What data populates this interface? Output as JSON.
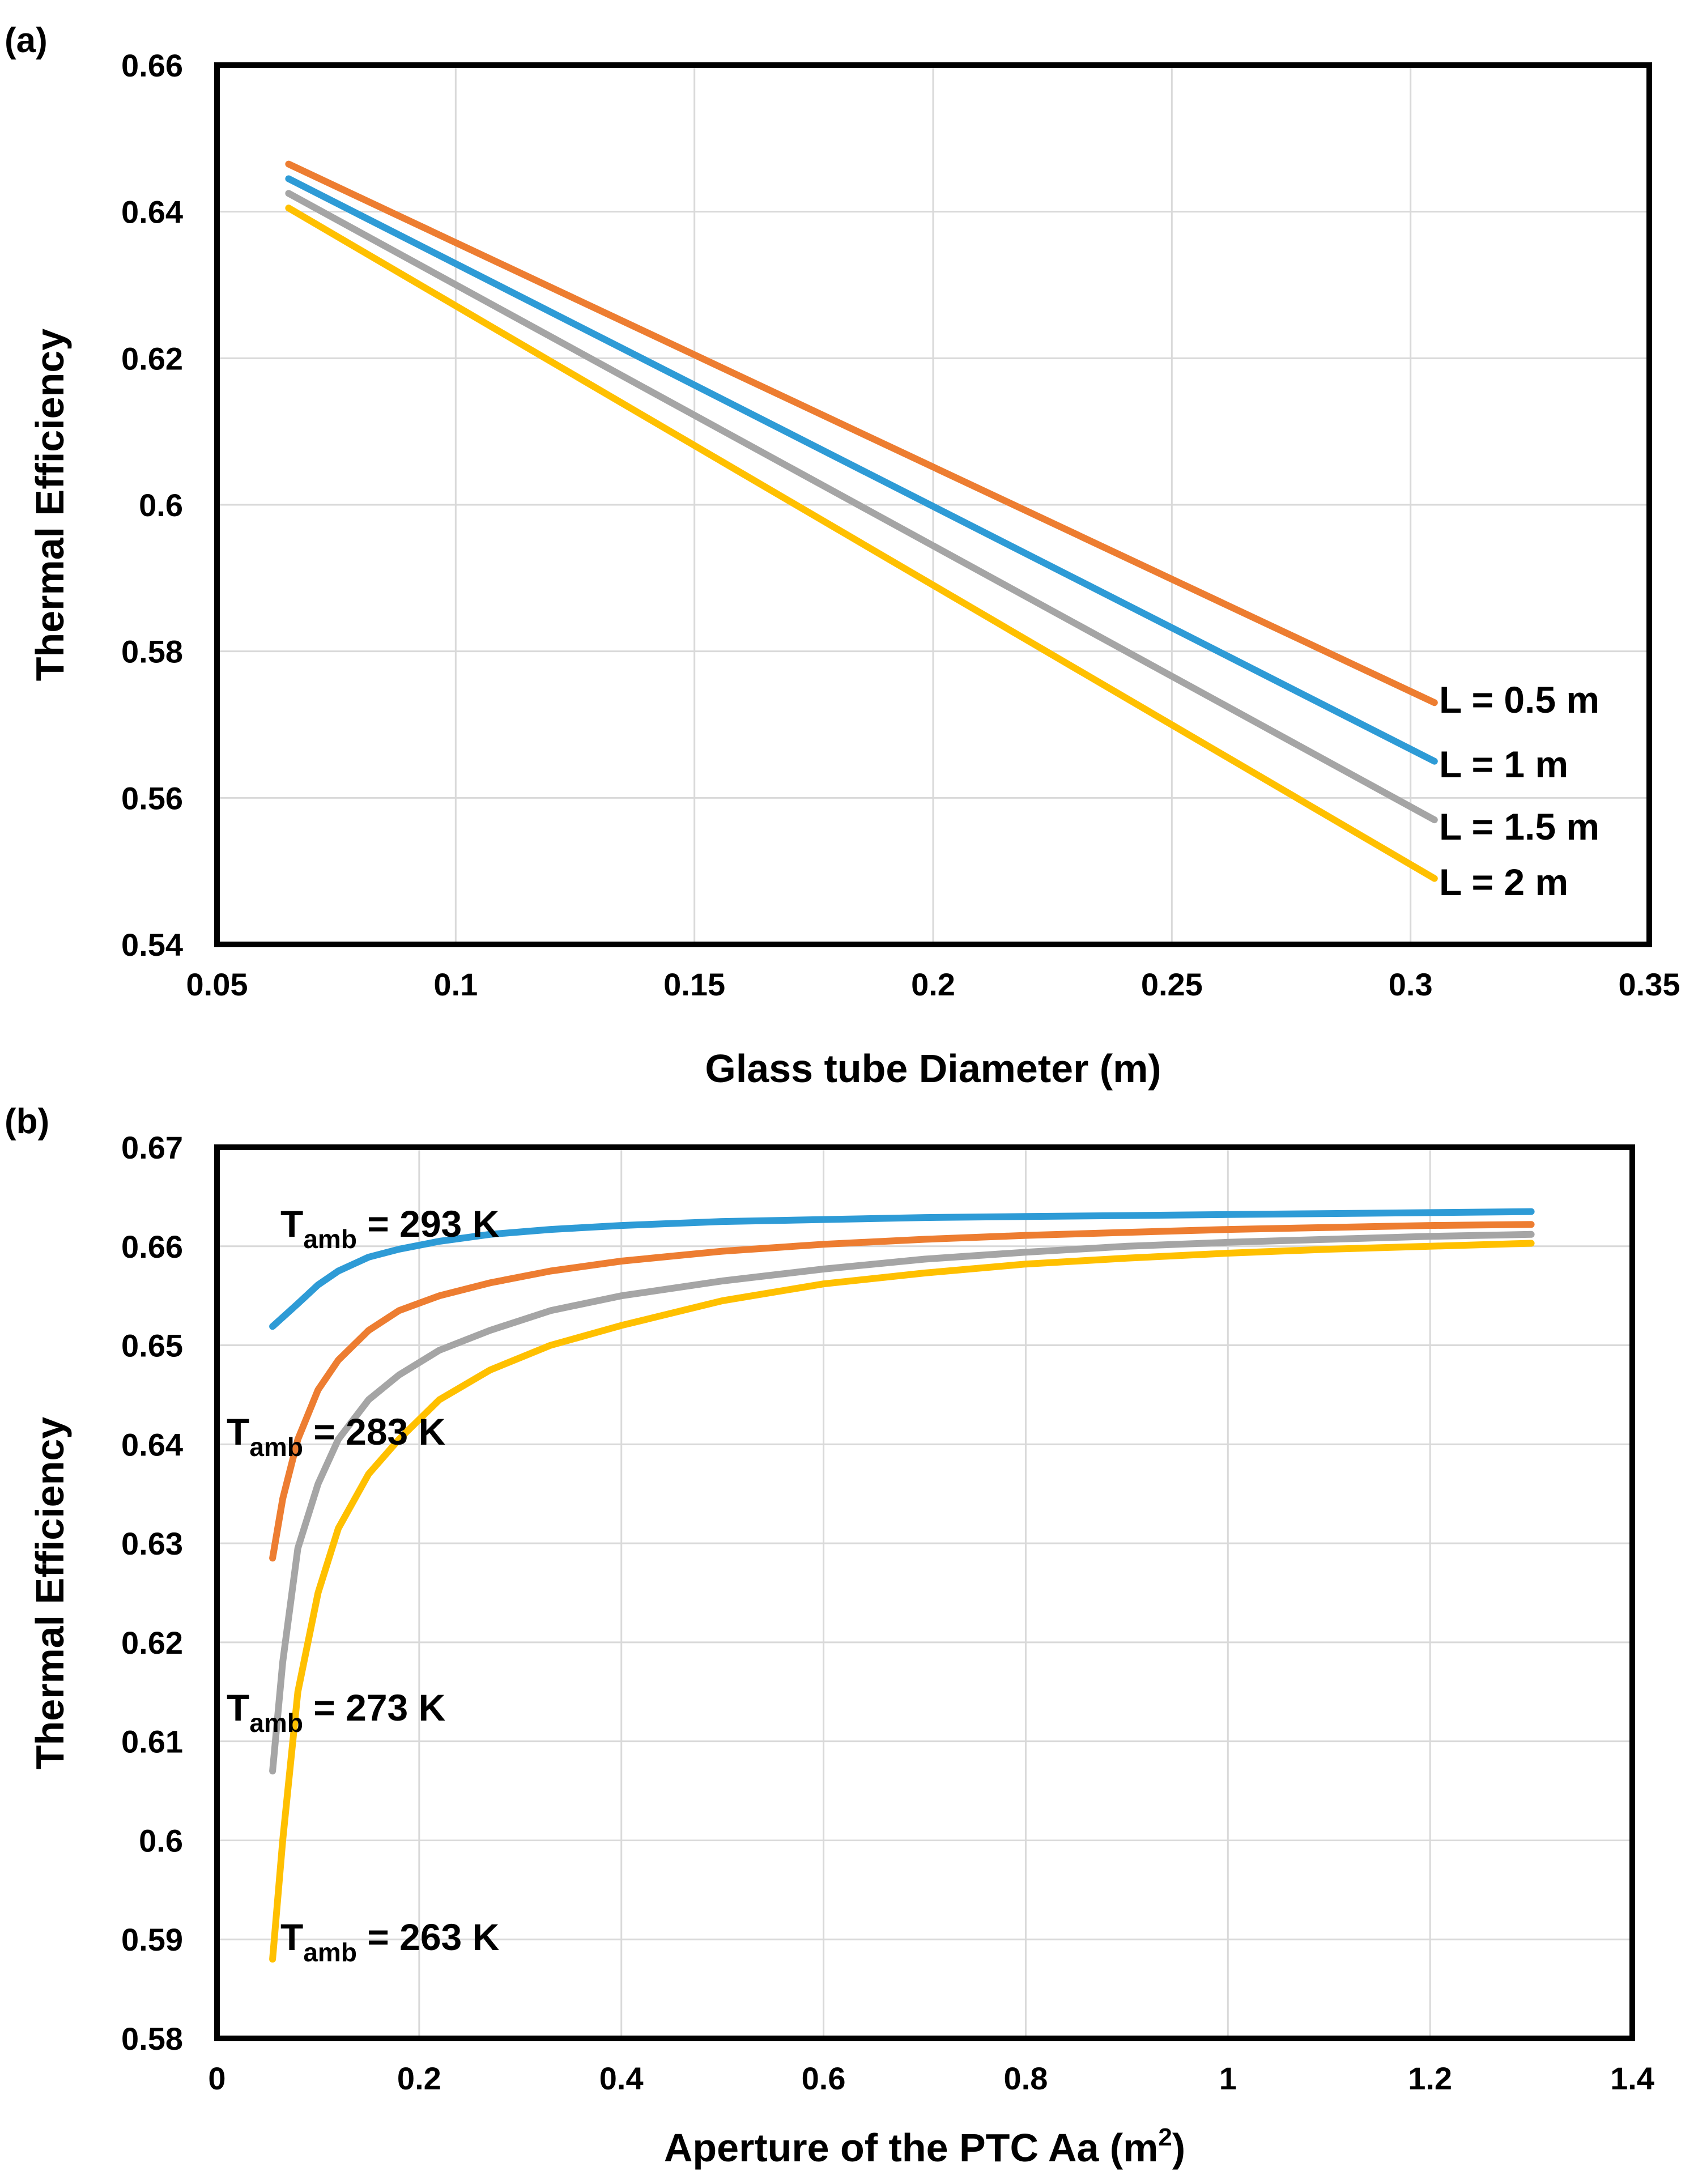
{
  "chart_data": [
    {
      "panel_label": "(a)",
      "type": "line",
      "xlabel": "Glass tube Diameter (m)",
      "ylabel": "Thermal Efficiency",
      "xlim": [
        0.05,
        0.35
      ],
      "ylim": [
        0.54,
        0.66
      ],
      "x_ticks": [
        "0.05",
        "0.1",
        "0.15",
        "0.2",
        "0.25",
        "0.3",
        "0.35"
      ],
      "y_ticks": [
        "0.54",
        "0.56",
        "0.58",
        "0.6",
        "0.62",
        "0.64",
        "0.66"
      ],
      "grid": true,
      "series": [
        {
          "name": "L = 0.5 m",
          "color": "#ED7D31",
          "x": [
            0.065,
            0.305
          ],
          "y": [
            0.6465,
            0.573
          ]
        },
        {
          "name": "L = 1 m",
          "color": "#2E9BD6",
          "x": [
            0.065,
            0.305
          ],
          "y": [
            0.6445,
            0.565
          ]
        },
        {
          "name": "L = 1.5 m",
          "color": "#A5A5A5",
          "x": [
            0.065,
            0.305
          ],
          "y": [
            0.6425,
            0.557
          ]
        },
        {
          "name": "L = 2 m",
          "color": "#FFC000",
          "x": [
            0.065,
            0.305
          ],
          "y": [
            0.6405,
            0.549
          ]
        }
      ]
    },
    {
      "panel_label": "(b)",
      "type": "line",
      "xlabel": "Aperture of the PTC Aa (m",
      "xlabel_sup": "2",
      "xlabel_end": ")",
      "ylabel": "Thermal Efficiency",
      "xlim": [
        0,
        1.4
      ],
      "ylim": [
        0.58,
        0.67
      ],
      "x_ticks": [
        "0",
        "0.2",
        "0.4",
        "0.6",
        "0.8",
        "1",
        "1.2",
        "1.4"
      ],
      "y_ticks": [
        "0.58",
        "0.59",
        "0.6",
        "0.61",
        "0.62",
        "0.63",
        "0.64",
        "0.65",
        "0.66",
        "0.67"
      ],
      "grid": true,
      "series": [
        {
          "name_main": "T",
          "name_sub": "amb",
          "name_rest": " = 293 K",
          "color": "#2E9BD6",
          "x": [
            0.055,
            0.08,
            0.1,
            0.12,
            0.15,
            0.18,
            0.22,
            0.27,
            0.33,
            0.4,
            0.5,
            0.6,
            0.7,
            0.8,
            0.9,
            1.0,
            1.1,
            1.2,
            1.3
          ],
          "y": [
            0.6519,
            0.6542,
            0.6561,
            0.6575,
            0.6589,
            0.6597,
            0.6605,
            0.6612,
            0.6617,
            0.6621,
            0.6625,
            0.6627,
            0.6629,
            0.663,
            0.6631,
            0.6632,
            0.6633,
            0.6634,
            0.6635
          ]
        },
        {
          "name_main": "T",
          "name_sub": "amb",
          "name_rest": " = 283 K",
          "color": "#ED7D31",
          "x": [
            0.055,
            0.065,
            0.08,
            0.1,
            0.12,
            0.15,
            0.18,
            0.22,
            0.27,
            0.33,
            0.4,
            0.5,
            0.6,
            0.7,
            0.8,
            0.9,
            1.0,
            1.1,
            1.2,
            1.3
          ],
          "y": [
            0.6285,
            0.6345,
            0.6405,
            0.6455,
            0.6485,
            0.6515,
            0.6535,
            0.655,
            0.6563,
            0.6575,
            0.6585,
            0.6595,
            0.6602,
            0.6607,
            0.6611,
            0.6614,
            0.6617,
            0.6619,
            0.6621,
            0.6622
          ]
        },
        {
          "name_main": "T",
          "name_sub": "amb",
          "name_rest": " = 273 K",
          "color": "#A5A5A5",
          "x": [
            0.055,
            0.065,
            0.08,
            0.1,
            0.12,
            0.15,
            0.18,
            0.22,
            0.27,
            0.33,
            0.4,
            0.5,
            0.6,
            0.7,
            0.8,
            0.9,
            1.0,
            1.1,
            1.2,
            1.3
          ],
          "y": [
            0.607,
            0.618,
            0.6295,
            0.636,
            0.6405,
            0.6445,
            0.647,
            0.6495,
            0.6515,
            0.6535,
            0.655,
            0.6565,
            0.6577,
            0.6587,
            0.6594,
            0.66,
            0.6604,
            0.6607,
            0.661,
            0.6612
          ]
        },
        {
          "name_main": "T",
          "name_sub": "amb",
          "name_rest": " = 263 K",
          "color": "#FFC000",
          "x": [
            0.055,
            0.065,
            0.08,
            0.1,
            0.12,
            0.15,
            0.18,
            0.22,
            0.27,
            0.33,
            0.4,
            0.5,
            0.6,
            0.7,
            0.8,
            0.9,
            1.0,
            1.1,
            1.2,
            1.3
          ],
          "y": [
            0.588,
            0.6,
            0.615,
            0.625,
            0.6315,
            0.637,
            0.6405,
            0.6445,
            0.6475,
            0.65,
            0.652,
            0.6545,
            0.6562,
            0.6573,
            0.6582,
            0.6588,
            0.6593,
            0.6597,
            0.66,
            0.6603
          ]
        }
      ]
    }
  ]
}
